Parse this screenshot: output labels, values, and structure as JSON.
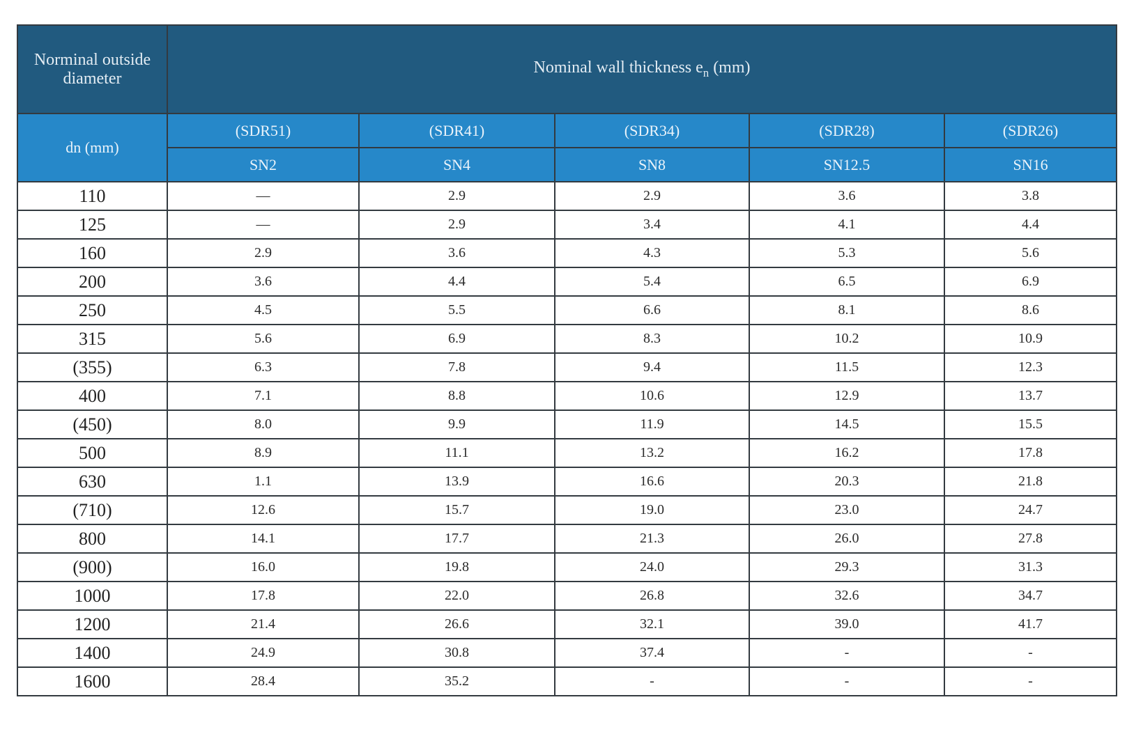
{
  "header": {
    "diameter_title": "Norminal outside diameter",
    "thickness_title_main": "Nominal wall thickness e",
    "thickness_title_sub": "n",
    "thickness_title_unit": " (mm)",
    "dn_label": "dn (mm)",
    "sdr": [
      "(SDR51)",
      "(SDR41)",
      "(SDR34)",
      "(SDR28)",
      "(SDR26)"
    ],
    "sn": [
      "SN2",
      "SN4",
      "SN8",
      "SN12.5",
      "SN16"
    ]
  },
  "rows": [
    [
      "110",
      "—",
      "2.9",
      "2.9",
      "3.6",
      "3.8"
    ],
    [
      "125",
      "—",
      "2.9",
      "3.4",
      "4.1",
      "4.4"
    ],
    [
      "160",
      "2.9",
      "3.6",
      "4.3",
      "5.3",
      "5.6"
    ],
    [
      "200",
      "3.6",
      "4.4",
      "5.4",
      "6.5",
      "6.9"
    ],
    [
      "250",
      "4.5",
      "5.5",
      "6.6",
      "8.1",
      "8.6"
    ],
    [
      "315",
      "5.6",
      "6.9",
      "8.3",
      "10.2",
      "10.9"
    ],
    [
      "(355)",
      "6.3",
      "7.8",
      "9.4",
      "11.5",
      "12.3"
    ],
    [
      "400",
      "7.1",
      "8.8",
      "10.6",
      "12.9",
      "13.7"
    ],
    [
      "(450)",
      "8.0",
      "9.9",
      "11.9",
      "14.5",
      "15.5"
    ],
    [
      "500",
      "8.9",
      "11.1",
      "13.2",
      "16.2",
      "17.8"
    ],
    [
      "630",
      "1.1",
      "13.9",
      "16.6",
      "20.3",
      "21.8"
    ],
    [
      "(710)",
      "12.6",
      "15.7",
      "19.0",
      "23.0",
      "24.7"
    ],
    [
      "800",
      "14.1",
      "17.7",
      "21.3",
      "26.0",
      "27.8"
    ],
    [
      "(900)",
      "16.0",
      "19.8",
      "24.0",
      "29.3",
      "31.3"
    ],
    [
      "1000",
      "17.8",
      "22.0",
      "26.8",
      "32.6",
      "34.7"
    ],
    [
      "1200",
      "21.4",
      "26.6",
      "32.1",
      "39.0",
      "41.7"
    ],
    [
      "1400",
      "24.9",
      "30.8",
      "37.4",
      "-",
      "-"
    ],
    [
      "1600",
      "28.4",
      "35.2",
      "-",
      "-",
      "-"
    ]
  ],
  "colors": {
    "header_dark": "#215a7f",
    "header_light": "#2688c9",
    "border": "#333a40"
  }
}
